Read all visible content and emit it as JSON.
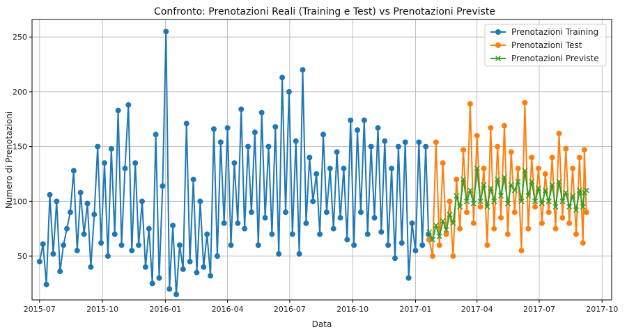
{
  "chart_data": {
    "type": "line",
    "title": "Confronto: Prenotazioni Reali (Training e Test) vs Prenotazioni Previste",
    "xlabel": "Data",
    "ylabel": "Numero di Prenotazioni",
    "xlim": [
      "2015-06-20",
      "2017-10-15"
    ],
    "ylim": [
      10,
      266
    ],
    "x_ticks": [
      "2015-07",
      "2015-10",
      "2016-01",
      "2016-04",
      "2016-07",
      "2016-10",
      "2017-01",
      "2017-04",
      "2017-07",
      "2017-10"
    ],
    "x_tick_dates": [
      "2015-07-01",
      "2015-10-01",
      "2016-01-01",
      "2016-04-01",
      "2016-07-01",
      "2016-10-01",
      "2017-01-01",
      "2017-04-01",
      "2017-07-01",
      "2017-10-01"
    ],
    "y_ticks": [
      50,
      100,
      150,
      200,
      250
    ],
    "grid": true,
    "legend_position": "top-right",
    "colors": {
      "training": "#1f77b4",
      "test": "#ff7f0e",
      "forecast": "#2ca02c"
    },
    "series": [
      {
        "name": "Prenotazioni Training",
        "marker": "circle",
        "color": "#1f77b4",
        "points": [
          [
            "2015-07-01",
            45
          ],
          [
            "2015-07-06",
            61
          ],
          [
            "2015-07-11",
            24
          ],
          [
            "2015-07-16",
            106
          ],
          [
            "2015-07-21",
            52
          ],
          [
            "2015-07-26",
            100
          ],
          [
            "2015-07-31",
            36
          ],
          [
            "2015-08-05",
            60
          ],
          [
            "2015-08-10",
            75
          ],
          [
            "2015-08-15",
            90
          ],
          [
            "2015-08-20",
            128
          ],
          [
            "2015-08-25",
            55
          ],
          [
            "2015-08-30",
            108
          ],
          [
            "2015-09-04",
            70
          ],
          [
            "2015-09-09",
            98
          ],
          [
            "2015-09-14",
            40
          ],
          [
            "2015-09-19",
            88
          ],
          [
            "2015-09-24",
            150
          ],
          [
            "2015-09-29",
            62
          ],
          [
            "2015-10-04",
            135
          ],
          [
            "2015-10-09",
            50
          ],
          [
            "2015-10-14",
            148
          ],
          [
            "2015-10-19",
            70
          ],
          [
            "2015-10-24",
            183
          ],
          [
            "2015-10-29",
            60
          ],
          [
            "2015-11-03",
            130
          ],
          [
            "2015-11-08",
            188
          ],
          [
            "2015-11-13",
            55
          ],
          [
            "2015-11-18",
            135
          ],
          [
            "2015-11-23",
            60
          ],
          [
            "2015-11-28",
            100
          ],
          [
            "2015-12-03",
            40
          ],
          [
            "2015-12-08",
            75
          ],
          [
            "2015-12-13",
            25
          ],
          [
            "2015-12-18",
            161
          ],
          [
            "2015-12-23",
            30
          ],
          [
            "2015-12-28",
            114
          ],
          [
            "2016-01-02",
            255
          ],
          [
            "2016-01-07",
            20
          ],
          [
            "2016-01-12",
            78
          ],
          [
            "2016-01-17",
            15
          ],
          [
            "2016-01-22",
            60
          ],
          [
            "2016-01-27",
            38
          ],
          [
            "2016-02-01",
            171
          ],
          [
            "2016-02-06",
            45
          ],
          [
            "2016-02-11",
            120
          ],
          [
            "2016-02-16",
            35
          ],
          [
            "2016-02-21",
            100
          ],
          [
            "2016-02-26",
            40
          ],
          [
            "2016-03-02",
            70
          ],
          [
            "2016-03-07",
            32
          ],
          [
            "2016-03-12",
            166
          ],
          [
            "2016-03-17",
            50
          ],
          [
            "2016-03-22",
            154
          ],
          [
            "2016-03-27",
            80
          ],
          [
            "2016-04-01",
            167
          ],
          [
            "2016-04-06",
            60
          ],
          [
            "2016-04-11",
            135
          ],
          [
            "2016-04-16",
            80
          ],
          [
            "2016-04-21",
            184
          ],
          [
            "2016-04-26",
            75
          ],
          [
            "2016-05-01",
            150
          ],
          [
            "2016-05-06",
            90
          ],
          [
            "2016-05-11",
            163
          ],
          [
            "2016-05-16",
            60
          ],
          [
            "2016-05-21",
            181
          ],
          [
            "2016-05-26",
            85
          ],
          [
            "2016-05-31",
            150
          ],
          [
            "2016-06-05",
            70
          ],
          [
            "2016-06-10",
            168
          ],
          [
            "2016-06-15",
            52
          ],
          [
            "2016-06-20",
            213
          ],
          [
            "2016-06-25",
            90
          ],
          [
            "2016-06-30",
            200
          ],
          [
            "2016-07-05",
            70
          ],
          [
            "2016-07-10",
            155
          ],
          [
            "2016-07-15",
            52
          ],
          [
            "2016-07-20",
            220
          ],
          [
            "2016-07-25",
            80
          ],
          [
            "2016-07-30",
            140
          ],
          [
            "2016-08-04",
            100
          ],
          [
            "2016-08-09",
            125
          ],
          [
            "2016-08-14",
            70
          ],
          [
            "2016-08-19",
            161
          ],
          [
            "2016-08-24",
            90
          ],
          [
            "2016-08-29",
            130
          ],
          [
            "2016-09-03",
            75
          ],
          [
            "2016-09-08",
            145
          ],
          [
            "2016-09-13",
            85
          ],
          [
            "2016-09-18",
            130
          ],
          [
            "2016-09-23",
            65
          ],
          [
            "2016-09-28",
            174
          ],
          [
            "2016-10-03",
            60
          ],
          [
            "2016-10-08",
            165
          ],
          [
            "2016-10-13",
            90
          ],
          [
            "2016-10-18",
            174
          ],
          [
            "2016-10-23",
            70
          ],
          [
            "2016-10-28",
            150
          ],
          [
            "2016-11-02",
            85
          ],
          [
            "2016-11-07",
            167
          ],
          [
            "2016-11-12",
            72
          ],
          [
            "2016-11-17",
            155
          ],
          [
            "2016-11-22",
            60
          ],
          [
            "2016-11-27",
            130
          ],
          [
            "2016-12-02",
            48
          ],
          [
            "2016-12-07",
            150
          ],
          [
            "2016-12-12",
            62
          ],
          [
            "2016-12-17",
            154
          ],
          [
            "2016-12-22",
            30
          ],
          [
            "2016-12-27",
            80
          ],
          [
            "2017-01-01",
            55
          ],
          [
            "2017-01-06",
            154
          ],
          [
            "2017-01-11",
            60
          ],
          [
            "2017-01-16",
            150
          ],
          [
            "2017-01-20",
            70
          ]
        ]
      },
      {
        "name": "Prenotazioni Test",
        "marker": "circle",
        "color": "#ff7f0e",
        "points": [
          [
            "2017-01-21",
            65
          ],
          [
            "2017-01-26",
            50
          ],
          [
            "2017-01-31",
            154
          ],
          [
            "2017-02-05",
            60
          ],
          [
            "2017-02-10",
            135
          ],
          [
            "2017-02-15",
            70
          ],
          [
            "2017-02-20",
            100
          ],
          [
            "2017-02-25",
            50
          ],
          [
            "2017-03-02",
            120
          ],
          [
            "2017-03-07",
            75
          ],
          [
            "2017-03-12",
            147
          ],
          [
            "2017-03-17",
            90
          ],
          [
            "2017-03-22",
            189
          ],
          [
            "2017-03-27",
            80
          ],
          [
            "2017-04-01",
            160
          ],
          [
            "2017-04-06",
            95
          ],
          [
            "2017-04-11",
            130
          ],
          [
            "2017-04-16",
            60
          ],
          [
            "2017-04-21",
            167
          ],
          [
            "2017-04-26",
            75
          ],
          [
            "2017-05-01",
            150
          ],
          [
            "2017-05-06",
            85
          ],
          [
            "2017-05-11",
            169
          ],
          [
            "2017-05-16",
            70
          ],
          [
            "2017-05-21",
            145
          ],
          [
            "2017-05-26",
            90
          ],
          [
            "2017-05-31",
            130
          ],
          [
            "2017-06-05",
            55
          ],
          [
            "2017-06-10",
            190
          ],
          [
            "2017-06-15",
            75
          ],
          [
            "2017-06-20",
            140
          ],
          [
            "2017-06-25",
            95
          ],
          [
            "2017-06-30",
            130
          ],
          [
            "2017-07-05",
            80
          ],
          [
            "2017-07-10",
            125
          ],
          [
            "2017-07-15",
            90
          ],
          [
            "2017-07-20",
            140
          ],
          [
            "2017-07-25",
            75
          ],
          [
            "2017-07-30",
            162
          ],
          [
            "2017-08-04",
            85
          ],
          [
            "2017-08-09",
            148
          ],
          [
            "2017-08-14",
            80
          ],
          [
            "2017-08-19",
            130
          ],
          [
            "2017-08-24",
            70
          ],
          [
            "2017-08-29",
            140
          ],
          [
            "2017-09-03",
            62
          ],
          [
            "2017-09-05",
            147
          ],
          [
            "2017-09-08",
            90
          ]
        ]
      },
      {
        "name": "Prenotazioni Previste",
        "marker": "x",
        "color": "#2ca02c",
        "points": [
          [
            "2017-01-21",
            72
          ],
          [
            "2017-01-26",
            65
          ],
          [
            "2017-01-31",
            78
          ],
          [
            "2017-02-05",
            68
          ],
          [
            "2017-02-10",
            82
          ],
          [
            "2017-02-15",
            74
          ],
          [
            "2017-02-20",
            88
          ],
          [
            "2017-02-25",
            80
          ],
          [
            "2017-03-02",
            105
          ],
          [
            "2017-03-07",
            95
          ],
          [
            "2017-03-12",
            120
          ],
          [
            "2017-03-17",
            100
          ],
          [
            "2017-03-22",
            110
          ],
          [
            "2017-03-27",
            98
          ],
          [
            "2017-04-01",
            130
          ],
          [
            "2017-04-06",
            100
          ],
          [
            "2017-04-11",
            115
          ],
          [
            "2017-04-16",
            95
          ],
          [
            "2017-04-21",
            112
          ],
          [
            "2017-04-26",
            100
          ],
          [
            "2017-05-01",
            120
          ],
          [
            "2017-05-06",
            105
          ],
          [
            "2017-05-11",
            122
          ],
          [
            "2017-05-16",
            98
          ],
          [
            "2017-05-21",
            115
          ],
          [
            "2017-05-26",
            110
          ],
          [
            "2017-05-31",
            118
          ],
          [
            "2017-06-05",
            100
          ],
          [
            "2017-06-10",
            128
          ],
          [
            "2017-06-15",
            105
          ],
          [
            "2017-06-20",
            118
          ],
          [
            "2017-06-25",
            100
          ],
          [
            "2017-06-30",
            112
          ],
          [
            "2017-07-05",
            98
          ],
          [
            "2017-07-10",
            110
          ],
          [
            "2017-07-15",
            100
          ],
          [
            "2017-07-20",
            115
          ],
          [
            "2017-07-25",
            95
          ],
          [
            "2017-07-30",
            118
          ],
          [
            "2017-08-04",
            100
          ],
          [
            "2017-08-09",
            108
          ],
          [
            "2017-08-14",
            95
          ],
          [
            "2017-08-19",
            105
          ],
          [
            "2017-08-24",
            92
          ],
          [
            "2017-08-29",
            110
          ],
          [
            "2017-09-03",
            95
          ],
          [
            "2017-09-05",
            108
          ],
          [
            "2017-09-08",
            110
          ]
        ]
      }
    ]
  }
}
